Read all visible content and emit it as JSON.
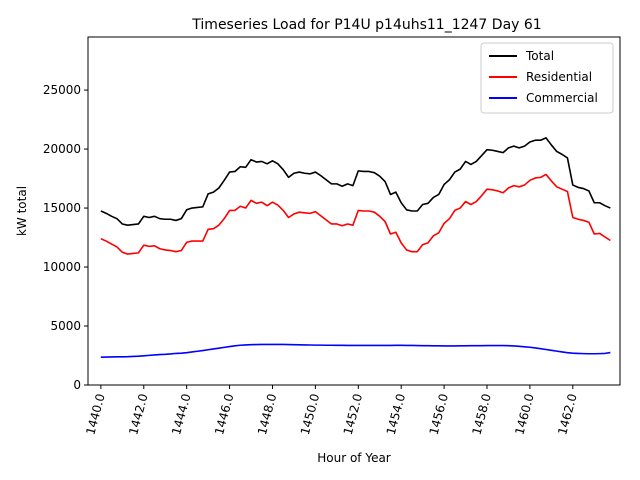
{
  "chart_data": {
    "type": "line",
    "title": "Timeseries Load for P14U p14uhs11_1247  Day 61",
    "xlabel": "Hour of Year",
    "ylabel": "kW total",
    "xlim": [
      1439.4,
      1464.2
    ],
    "ylim": [
      0,
      29500
    ],
    "xticks": [
      1440,
      1442,
      1444,
      1446,
      1448,
      1450,
      1452,
      1454,
      1456,
      1458,
      1460,
      1462
    ],
    "xtick_labels": [
      "1440.0",
      "1442.0",
      "1444.0",
      "1446.0",
      "1448.0",
      "1450.0",
      "1452.0",
      "1454.0",
      "1456.0",
      "1458.0",
      "1460.0",
      "1462.0"
    ],
    "yticks": [
      0,
      5000,
      10000,
      15000,
      20000,
      25000
    ],
    "ytick_labels": [
      "0",
      "5000",
      "10000",
      "15000",
      "20000",
      "25000"
    ],
    "legend_position": "top-right",
    "x_start": 1440.0,
    "x_step": 0.25,
    "series": [
      {
        "name": "Total",
        "color": "#000000",
        "values": [
          14750,
          14550,
          14300,
          14100,
          13650,
          13550,
          13600,
          13650,
          14300,
          14200,
          14300,
          14100,
          14050,
          14050,
          13950,
          14100,
          14850,
          15000,
          15050,
          15100,
          16200,
          16350,
          16700,
          17350,
          18050,
          18100,
          18500,
          18450,
          19100,
          18900,
          18950,
          18750,
          19000,
          18750,
          18250,
          17600,
          17950,
          18050,
          17950,
          17900,
          18050,
          17750,
          17400,
          17050,
          17050,
          16850,
          17050,
          16900,
          18150,
          18100,
          18100,
          18000,
          17700,
          17250,
          16150,
          16350,
          15450,
          14850,
          14750,
          14750,
          15300,
          15400,
          15900,
          16150,
          17000,
          17400,
          18050,
          18300,
          18950,
          18700,
          18950,
          19450,
          19950,
          19900,
          19800,
          19700,
          20100,
          20250,
          20100,
          20250,
          20600,
          20750,
          20750,
          20950,
          20350,
          19800,
          19550,
          19250,
          16950,
          16750,
          16650,
          16450,
          15450,
          15450,
          15200,
          15000
        ]
      },
      {
        "name": "Residential",
        "color": "#ff0000",
        "values": [
          12400,
          12200,
          11950,
          11700,
          11250,
          11100,
          11150,
          11200,
          11850,
          11750,
          11800,
          11550,
          11450,
          11400,
          11300,
          11400,
          12100,
          12200,
          12200,
          12200,
          13200,
          13250,
          13550,
          14100,
          14800,
          14800,
          15150,
          15000,
          15650,
          15400,
          15500,
          15200,
          15500,
          15250,
          14800,
          14200,
          14500,
          14650,
          14600,
          14550,
          14700,
          14350,
          14000,
          13650,
          13650,
          13500,
          13650,
          13550,
          14800,
          14750,
          14750,
          14650,
          14300,
          13850,
          12800,
          12950,
          12050,
          11450,
          11300,
          11300,
          11900,
          12050,
          12650,
          12900,
          13700,
          14100,
          14800,
          15000,
          15550,
          15300,
          15550,
          16050,
          16600,
          16550,
          16450,
          16300,
          16700,
          16900,
          16800,
          16950,
          17350,
          17550,
          17600,
          17850,
          17300,
          16800,
          16600,
          16400,
          14200,
          14050,
          13950,
          13800,
          12800,
          12850,
          12550,
          12250
        ]
      },
      {
        "name": "Commercial",
        "color": "#0000ff",
        "values": [
          2360,
          2370,
          2380,
          2390,
          2390,
          2400,
          2420,
          2440,
          2470,
          2510,
          2550,
          2580,
          2600,
          2630,
          2680,
          2700,
          2740,
          2800,
          2860,
          2920,
          2990,
          3060,
          3120,
          3190,
          3260,
          3320,
          3370,
          3400,
          3420,
          3430,
          3440,
          3440,
          3440,
          3440,
          3440,
          3430,
          3420,
          3410,
          3400,
          3390,
          3380,
          3380,
          3370,
          3370,
          3360,
          3360,
          3350,
          3350,
          3350,
          3350,
          3350,
          3350,
          3350,
          3350,
          3350,
          3360,
          3360,
          3350,
          3350,
          3340,
          3330,
          3330,
          3320,
          3320,
          3310,
          3310,
          3310,
          3320,
          3320,
          3330,
          3330,
          3330,
          3340,
          3340,
          3340,
          3340,
          3330,
          3310,
          3280,
          3240,
          3200,
          3140,
          3080,
          3010,
          2940,
          2870,
          2800,
          2740,
          2700,
          2680,
          2660,
          2650,
          2650,
          2660,
          2680,
          2750
        ]
      }
    ]
  }
}
